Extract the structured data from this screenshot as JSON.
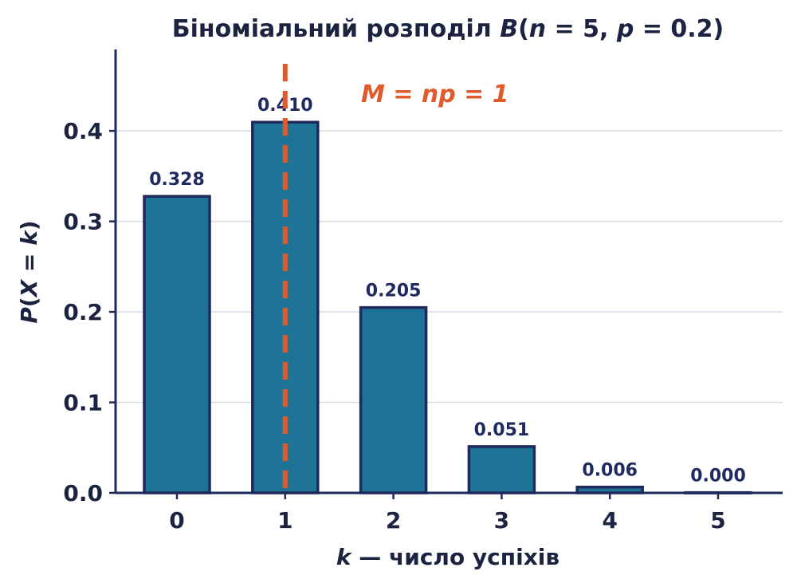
{
  "chart_data": {
    "type": "bar",
    "title_parts": {
      "prefix": "Біноміальний розподіл ",
      "B": "B",
      "open": "(",
      "n": "n",
      "eq1": " = 5,  ",
      "p": "p",
      "eq2": " = 0.2)"
    },
    "xlabel_parts": {
      "k": "k",
      "rest": " — число успіхів"
    },
    "ylabel_parts": {
      "P": "P",
      "open": "(",
      "X": "X",
      "eq": " = ",
      "k": "k",
      "close": ")"
    },
    "categories": [
      "0",
      "1",
      "2",
      "3",
      "4",
      "5"
    ],
    "values": [
      0.32768,
      0.4096,
      0.2048,
      0.0512,
      0.0064,
      0.00032
    ],
    "value_labels": [
      "0.328",
      "0.410",
      "0.205",
      "0.051",
      "0.006",
      "0.000"
    ],
    "y_ticks": [
      "0.0",
      "0.1",
      "0.2",
      "0.3",
      "0.4"
    ],
    "ylim": [
      0,
      0.49
    ],
    "grid": "horizontal",
    "mean": {
      "value": 1,
      "label_parts": {
        "M": "M",
        "eq1": " = ",
        "np": "np",
        "eq2": " = 1"
      }
    },
    "colors": {
      "bar_fill": "#1f7396",
      "bar_edge": "#1f2a5c",
      "mean_line": "#e05a2b",
      "axis": "#1f2a5c",
      "grid": "#d9dce6"
    }
  }
}
